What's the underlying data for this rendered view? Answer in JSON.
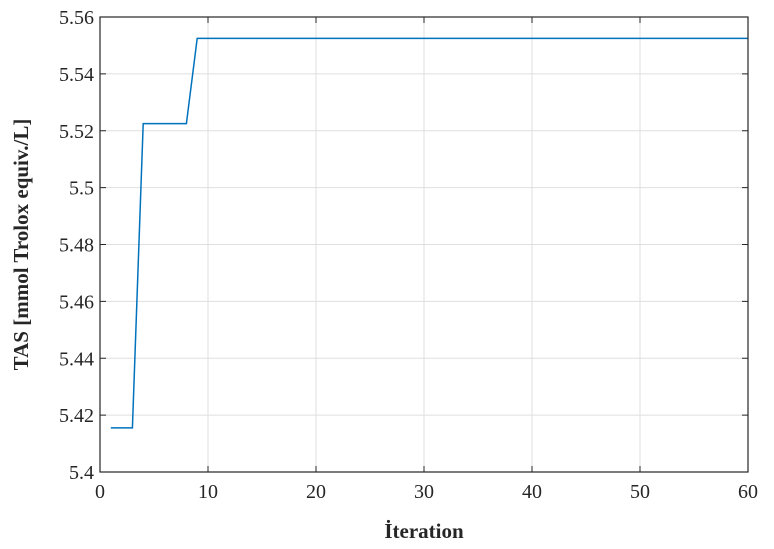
{
  "chart_data": {
    "type": "line",
    "xlabel": "İteration",
    "ylabel": "TAS [mmol Trolox equiv./L]",
    "xlim": [
      0,
      60
    ],
    "ylim": [
      5.4,
      5.56
    ],
    "x_ticks": [
      0,
      10,
      20,
      30,
      40,
      50,
      60
    ],
    "x_tick_labels": [
      "0",
      "10",
      "20",
      "30",
      "40",
      "50",
      "60"
    ],
    "y_ticks": [
      5.4,
      5.42,
      5.44,
      5.46,
      5.48,
      5.5,
      5.52,
      5.54,
      5.56
    ],
    "y_tick_labels": [
      "5.4",
      "5.42",
      "5.44",
      "5.46",
      "5.48",
      "5.5",
      "5.52",
      "5.54",
      "5.56"
    ],
    "grid": true,
    "series": [
      {
        "color": "#0072BD",
        "x": [
          1,
          3,
          4,
          8,
          9,
          60
        ],
        "y": [
          5.4155,
          5.4155,
          5.5225,
          5.5225,
          5.5525,
          5.5525
        ]
      }
    ]
  }
}
